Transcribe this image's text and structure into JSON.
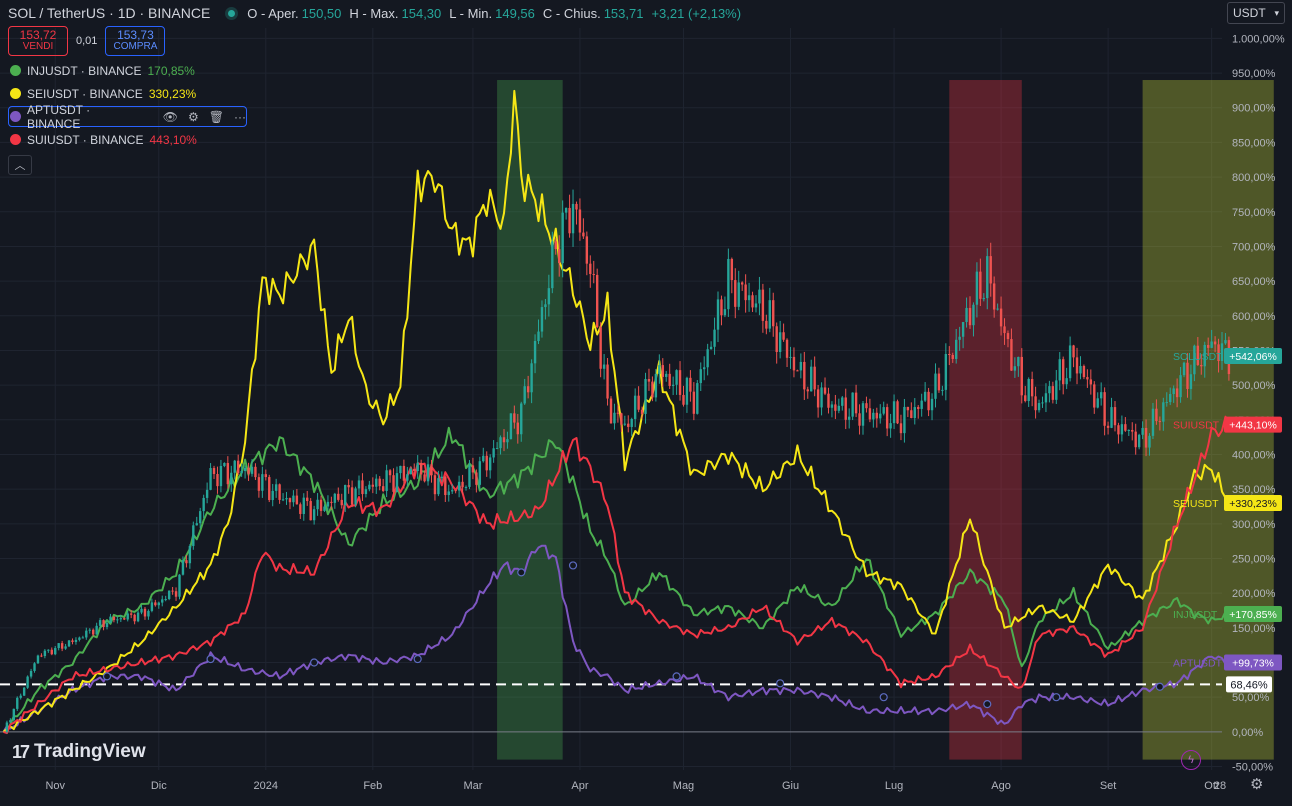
{
  "header": {
    "title": "SOL / TetherUS · 1D · BINANCE",
    "ohlc": [
      {
        "k": "O - Aper.",
        "v": "150,50"
      },
      {
        "k": "H - Max.",
        "v": "154,30"
      },
      {
        "k": "L - Min.",
        "v": "149,56"
      },
      {
        "k": "C - Chius.",
        "v": "153,71"
      },
      {
        "k": "",
        "v": "+3,21 (+2,13%)"
      }
    ],
    "sell_price": "153,72",
    "sell_label": "VENDI",
    "spread": "0,01",
    "buy_price": "153,73",
    "buy_label": "COMPRA"
  },
  "compare": [
    {
      "name": "INJUSDT · BINANCE",
      "value": "170,85%",
      "color": "#4caf50"
    },
    {
      "name": "SEIUSDT · BINANCE",
      "value": "330,23%",
      "color": "#f5e616"
    },
    {
      "name": "APTUSDT · BINANCE",
      "value": "",
      "color": "#7e57c2"
    },
    {
      "name": "SUIUSDT · BINANCE",
      "value": "443,10%",
      "color": "#f23645"
    }
  ],
  "currency": "USDT",
  "logo_text": "TradingView",
  "chart_data": {
    "type": "line",
    "ylabel": "",
    "xlabel": "",
    "y_unit": "%",
    "ylim": [
      -55,
      1015
    ],
    "y_ticks": [
      -50,
      0,
      50,
      100,
      150,
      200,
      250,
      300,
      350,
      400,
      450,
      500,
      550,
      600,
      650,
      700,
      750,
      800,
      850,
      900,
      950,
      1000
    ],
    "y_tick_labels": [
      "-50,00%",
      "0,00%",
      "50,00%",
      "100,00%",
      "150,00%",
      "200,00%",
      "250,00%",
      "300,00%",
      "350,00%",
      "400,00%",
      "450,00%",
      "500,00%",
      "550,00%",
      "600,00%",
      "650,00%",
      "700,00%",
      "750,00%",
      "800,00%",
      "850,00%",
      "900,00%",
      "950,00%",
      "1.000,00%"
    ],
    "x_range": [
      -1,
      353
    ],
    "x_ticks": [
      {
        "x": 15,
        "label": "Nov"
      },
      {
        "x": 45,
        "label": "Dic"
      },
      {
        "x": 76,
        "label": "2024"
      },
      {
        "x": 107,
        "label": "Feb"
      },
      {
        "x": 136,
        "label": "Mar"
      },
      {
        "x": 167,
        "label": "Apr"
      },
      {
        "x": 197,
        "label": "Mag"
      },
      {
        "x": 228,
        "label": "Giu"
      },
      {
        "x": 258,
        "label": "Lug"
      },
      {
        "x": 289,
        "label": "Ago"
      },
      {
        "x": 320,
        "label": "Set"
      },
      {
        "x": 350,
        "label": "Ott"
      }
    ],
    "x_tick_extra": "28",
    "ref_line": {
      "value": 68.46,
      "label": "68,46%"
    },
    "highlight_zones": [
      {
        "x0": 143,
        "x1": 162,
        "color": "#4caf50"
      },
      {
        "x0": 274,
        "x1": 295,
        "color": "#f23645"
      },
      {
        "x0": 330,
        "x1": 368,
        "color": "#cddc39"
      }
    ],
    "series": [
      {
        "name": "SOLUSDT",
        "label": "+542,06%",
        "color": "#26a69a",
        "style": "candles",
        "x": [
          0,
          10,
          20,
          30,
          40,
          50,
          60,
          70,
          80,
          90,
          100,
          110,
          120,
          130,
          140,
          150,
          160,
          165,
          170,
          175,
          180,
          190,
          200,
          210,
          220,
          230,
          240,
          250,
          260,
          270,
          280,
          285,
          290,
          295,
          300,
          310,
          320,
          330,
          340,
          350,
          355
        ],
        "y": [
          0,
          110,
          130,
          160,
          170,
          205,
          370,
          380,
          340,
          320,
          345,
          360,
          380,
          345,
          390,
          460,
          700,
          760,
          670,
          470,
          440,
          520,
          480,
          650,
          610,
          520,
          470,
          460,
          450,
          490,
          610,
          660,
          570,
          500,
          470,
          540,
          450,
          420,
          500,
          560,
          542
        ]
      },
      {
        "name": "SUIUSDT",
        "label": "+443,10%",
        "color": "#f23645",
        "style": "line",
        "x": [
          0,
          10,
          20,
          30,
          40,
          50,
          60,
          70,
          75,
          80,
          90,
          100,
          110,
          120,
          130,
          140,
          150,
          155,
          160,
          165,
          170,
          175,
          180,
          190,
          200,
          210,
          220,
          230,
          240,
          250,
          260,
          270,
          280,
          290,
          295,
          300,
          310,
          320,
          330,
          340,
          350,
          355
        ],
        "y": [
          0,
          40,
          80,
          90,
          100,
          110,
          130,
          170,
          260,
          235,
          230,
          330,
          320,
          385,
          360,
          300,
          310,
          320,
          370,
          420,
          380,
          330,
          200,
          160,
          140,
          150,
          180,
          130,
          160,
          130,
          70,
          80,
          120,
          80,
          60,
          140,
          150,
          110,
          150,
          300,
          430,
          443
        ]
      },
      {
        "name": "SEIUSDT",
        "label": "+330,23%",
        "color": "#f5e616",
        "style": "line",
        "x": [
          0,
          10,
          20,
          30,
          40,
          50,
          60,
          65,
          70,
          75,
          80,
          90,
          95,
          100,
          105,
          110,
          115,
          120,
          125,
          130,
          135,
          140,
          145,
          148,
          150,
          155,
          160,
          165,
          170,
          175,
          180,
          190,
          200,
          210,
          220,
          230,
          240,
          250,
          260,
          270,
          280,
          290,
          300,
          310,
          320,
          330,
          340,
          345,
          350,
          355
        ],
        "y": [
          0,
          30,
          60,
          90,
          130,
          180,
          240,
          300,
          420,
          650,
          630,
          700,
          520,
          600,
          490,
          450,
          500,
          790,
          800,
          720,
          700,
          770,
          730,
          920,
          800,
          760,
          700,
          640,
          560,
          610,
          390,
          520,
          370,
          400,
          350,
          400,
          320,
          230,
          210,
          140,
          310,
          150,
          180,
          160,
          240,
          190,
          300,
          370,
          380,
          330
        ]
      },
      {
        "name": "INJUSDT",
        "label": "+170,85%",
        "color": "#4caf50",
        "style": "line",
        "x": [
          0,
          10,
          20,
          30,
          40,
          50,
          60,
          70,
          80,
          90,
          100,
          110,
          120,
          130,
          140,
          150,
          160,
          165,
          170,
          175,
          180,
          190,
          200,
          210,
          220,
          230,
          240,
          250,
          260,
          270,
          280,
          290,
          295,
          300,
          310,
          320,
          330,
          340,
          345,
          350,
          355
        ],
        "y": [
          0,
          60,
          100,
          160,
          180,
          230,
          320,
          380,
          420,
          360,
          270,
          330,
          360,
          430,
          340,
          370,
          420,
          360,
          290,
          250,
          180,
          230,
          170,
          180,
          150,
          210,
          180,
          250,
          140,
          170,
          230,
          190,
          90,
          160,
          200,
          120,
          160,
          190,
          170,
          160,
          170
        ]
      },
      {
        "name": "APTUSDT",
        "label": "+99,73%",
        "color": "#7e57c2",
        "style": "line",
        "x": [
          0,
          10,
          20,
          30,
          40,
          50,
          60,
          70,
          80,
          90,
          100,
          110,
          120,
          130,
          140,
          145,
          150,
          155,
          160,
          165,
          170,
          175,
          180,
          190,
          200,
          210,
          220,
          230,
          240,
          250,
          260,
          270,
          280,
          290,
          295,
          300,
          310,
          320,
          330,
          340,
          350,
          355
        ],
        "y": [
          0,
          30,
          60,
          80,
          80,
          60,
          110,
          90,
          80,
          100,
          110,
          100,
          110,
          140,
          210,
          240,
          230,
          270,
          250,
          130,
          90,
          80,
          60,
          70,
          80,
          50,
          60,
          60,
          50,
          30,
          30,
          30,
          40,
          10,
          40,
          50,
          50,
          40,
          60,
          70,
          110,
          100
        ]
      }
    ]
  }
}
